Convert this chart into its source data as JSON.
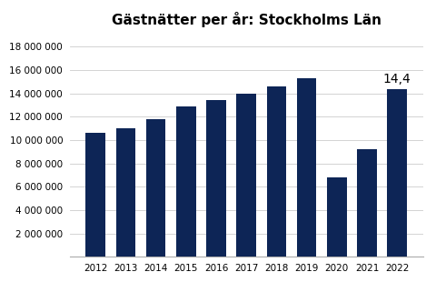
{
  "title": "Gästnätter per år: Stockholms Län",
  "years": [
    2012,
    2013,
    2014,
    2015,
    2016,
    2017,
    2018,
    2019,
    2020,
    2021,
    2022
  ],
  "values": [
    10600000,
    11000000,
    11800000,
    12900000,
    13400000,
    14000000,
    14600000,
    15300000,
    6800000,
    9200000,
    14400000
  ],
  "bar_color": "#0d2556",
  "annotation_label": "14,4",
  "annotation_year": 2022,
  "annotation_value": 14400000,
  "ylim": [
    0,
    19000000
  ],
  "ytick_step": 2000000,
  "background_color": "#ffffff",
  "title_fontsize": 11,
  "tick_fontsize": 7.5,
  "annotation_fontsize": 10,
  "grid_color": "#cccccc"
}
